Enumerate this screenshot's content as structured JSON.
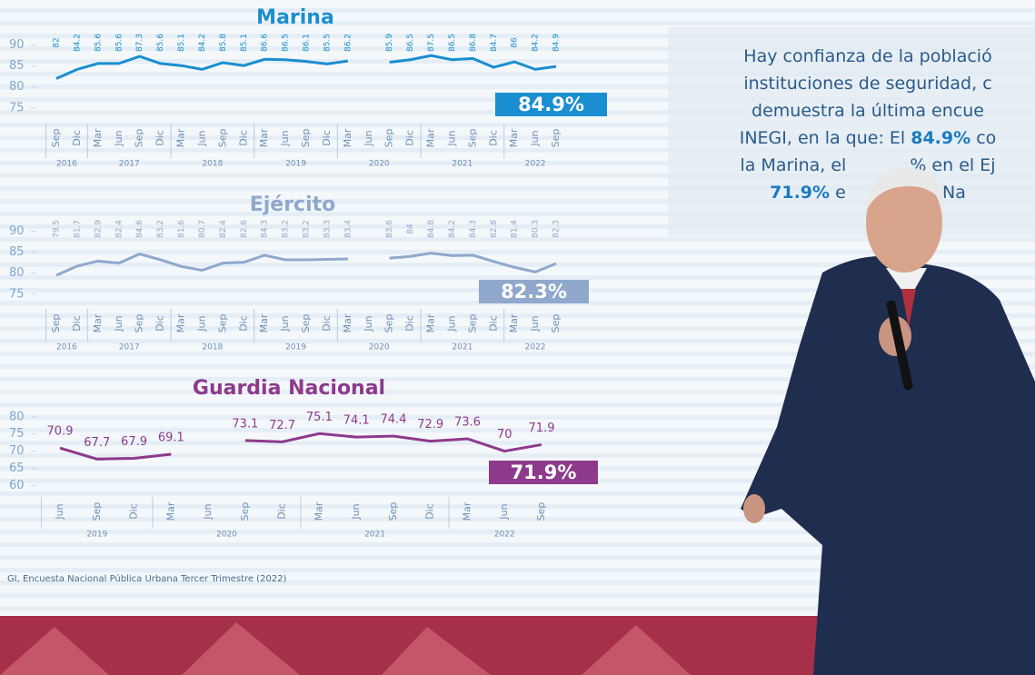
{
  "chart_data": [
    {
      "type": "line",
      "title": "Marina",
      "color": "#1a8ed0",
      "categories_by_year": [
        {
          "year": "2016",
          "categories": [
            "Sep",
            "Dic"
          ]
        },
        {
          "year": "2017",
          "categories": [
            "Mar",
            "Jun",
            "Sep",
            "Dic"
          ]
        },
        {
          "year": "2018",
          "categories": [
            "Mar",
            "Jun",
            "Sep",
            "Dic"
          ]
        },
        {
          "year": "2019",
          "categories": [
            "Mar",
            "Jun",
            "Sep",
            "Dic"
          ]
        },
        {
          "year": "2020",
          "categories": [
            "Mar",
            "Jun",
            "Sep",
            "Dic"
          ]
        },
        {
          "year": "2021",
          "categories": [
            "Mar",
            "Jun",
            "Sep",
            "Dic"
          ]
        },
        {
          "year": "2022",
          "categories": [
            "Mar",
            "Jun",
            "Sep"
          ]
        }
      ],
      "values": [
        82,
        84.2,
        85.6,
        85.6,
        87.3,
        85.6,
        85.1,
        84.2,
        85.8,
        85.1,
        86.6,
        86.5,
        86.1,
        85.5,
        86.2,
        null,
        85.9,
        86.5,
        87.5,
        86.5,
        86.8,
        84.7,
        86,
        84.2,
        84.9
      ],
      "ylim": [
        73,
        91
      ],
      "yticks": [
        75,
        80,
        85,
        90
      ],
      "badge": "84.9%"
    },
    {
      "type": "line",
      "title": "Ejército",
      "color": "#8fa8cc",
      "categories_by_year": [
        {
          "year": "2016",
          "categories": [
            "Sep",
            "Dic"
          ]
        },
        {
          "year": "2017",
          "categories": [
            "Mar",
            "Jun",
            "Sep",
            "Dic"
          ]
        },
        {
          "year": "2018",
          "categories": [
            "Mar",
            "Jun",
            "Sep",
            "Dic"
          ]
        },
        {
          "year": "2019",
          "categories": [
            "Mar",
            "Jun",
            "Sep",
            "Dic"
          ]
        },
        {
          "year": "2020",
          "categories": [
            "Mar",
            "Jun",
            "Sep",
            "Dic"
          ]
        },
        {
          "year": "2021",
          "categories": [
            "Mar",
            "Jun",
            "Sep",
            "Dic"
          ]
        },
        {
          "year": "2022",
          "categories": [
            "Mar",
            "Jun",
            "Sep"
          ]
        }
      ],
      "values": [
        79.5,
        81.7,
        82.9,
        82.4,
        84.6,
        83.2,
        81.6,
        80.7,
        82.4,
        82.6,
        84.3,
        83.2,
        83.2,
        83.3,
        83.4,
        null,
        83.6,
        84,
        84.8,
        84.2,
        84.3,
        82.8,
        81.4,
        80.3,
        82.3
      ],
      "ylim": [
        73,
        91
      ],
      "yticks": [
        75,
        80,
        85,
        90
      ],
      "badge": "82.3%"
    },
    {
      "type": "line",
      "title": "Guardia Nacional",
      "color": "#8e3a8c",
      "categories_by_year": [
        {
          "year": "2019",
          "categories": [
            "Jun",
            "Sep",
            "Dic"
          ]
        },
        {
          "year": "2020",
          "categories": [
            "Mar",
            "Jun",
            "Sep",
            "Dic"
          ]
        },
        {
          "year": "2021",
          "categories": [
            "Mar",
            "Jun",
            "Sep",
            "Dic"
          ]
        },
        {
          "year": "2022",
          "categories": [
            "Mar",
            "Jun",
            "Sep"
          ]
        }
      ],
      "values": [
        70.9,
        67.7,
        67.9,
        69.1,
        null,
        73.1,
        72.7,
        75.1,
        74.1,
        74.4,
        72.9,
        73.6,
        70,
        71.9
      ],
      "ylim": [
        58,
        81
      ],
      "yticks": [
        60,
        65,
        70,
        75,
        80
      ],
      "badge": "71.9%"
    }
  ],
  "caption_lines": [
    [
      {
        "text": "Hay confianza de la població"
      }
    ],
    [
      {
        "text": "instituciones de seguridad, c"
      }
    ],
    [
      {
        "text": "demuestra la última encue"
      }
    ],
    [
      {
        "text": "INEGI, en la que:  El "
      },
      {
        "text": "84.9%",
        "bold": true
      },
      {
        "text": " co"
      }
    ],
    [
      {
        "text": "la Marina, el"
      },
      {
        "text": "% en el Ej"
      }
    ],
    [
      {
        "text": "71.9%",
        "bold": true
      },
      {
        "text": " e"
      },
      {
        "text": "uardia Na"
      }
    ]
  ],
  "source": "GI, Encuesta Nacional Pública Urbana Tercer Trimestre (2022)",
  "logo": "20"
}
